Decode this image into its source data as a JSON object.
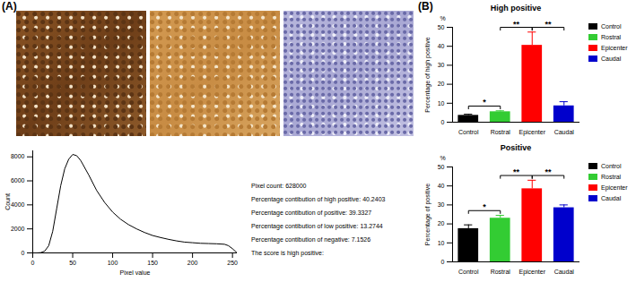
{
  "panel_labels": [
    "(A)",
    "(B)"
  ],
  "chart_data": [
    {
      "type": "line",
      "x": [
        0,
        5,
        10,
        15,
        20,
        25,
        30,
        35,
        40,
        45,
        50,
        55,
        60,
        70,
        80,
        90,
        100,
        110,
        120,
        130,
        140,
        150,
        160,
        170,
        180,
        190,
        200,
        210,
        220,
        230,
        240,
        245,
        250,
        255
      ],
      "values": [
        0,
        0,
        20,
        150,
        600,
        1800,
        3700,
        5600,
        7000,
        7800,
        8200,
        8100,
        7700,
        6500,
        5200,
        4200,
        3400,
        2800,
        2350,
        2000,
        1700,
        1450,
        1280,
        1130,
        1000,
        900,
        850,
        800,
        780,
        760,
        720,
        600,
        350,
        50
      ],
      "color": "#000000",
      "xlabel": "Pixel value",
      "ylabel": "Count",
      "xlim": [
        0,
        256
      ],
      "xticks": [
        0,
        50,
        100,
        150,
        200,
        250
      ],
      "ylim": [
        0,
        8500
      ],
      "yticks": [
        0,
        2000,
        4000,
        6000,
        8000
      ],
      "annotations": [
        "Pixel count: 628000",
        "Percentage contibution of high positive: 40.2403",
        "Percentage contibution of positive: 39.3327",
        "Percentage contibution of low positive: 13.2744",
        "Percentage contibution of negative: 7.1526",
        "The score is high positive:"
      ]
    },
    {
      "type": "bar",
      "title": "High positive",
      "ylabel": "Percentage of high positive",
      "y_unit_label": "%",
      "categories": [
        "Control",
        "Rostral",
        "Epicenter",
        "Caudal"
      ],
      "values": [
        3.6,
        5.5,
        40.5,
        8.6
      ],
      "errors": [
        0.6,
        0.5,
        7,
        2.2
      ],
      "colors": [
        "#000000",
        "#33cc33",
        "#ff0000",
        "#0000cc"
      ],
      "ylim": [
        0,
        50
      ],
      "yticks": [
        0,
        10,
        20,
        30,
        40,
        50
      ],
      "legend": "right",
      "significance": [
        {
          "from": "Control",
          "to": "Rostral",
          "label": "*"
        },
        {
          "from": "Rostral",
          "to": "Epicenter",
          "label": "**"
        },
        {
          "from": "Epicenter",
          "to": "Caudal",
          "label": "**"
        }
      ]
    },
    {
      "type": "bar",
      "title": "Positive",
      "ylabel": "Percentage of positive",
      "y_unit_label": "%",
      "categories": [
        "Control",
        "Rostral",
        "Epicenter",
        "Caudal"
      ],
      "values": [
        17.5,
        23,
        38.5,
        28.5
      ],
      "errors": [
        2,
        1.5,
        4.5,
        1.5
      ],
      "colors": [
        "#000000",
        "#33cc33",
        "#ff0000",
        "#0000cc"
      ],
      "ylim": [
        0,
        50
      ],
      "yticks": [
        0,
        10,
        20,
        30,
        40,
        50
      ],
      "legend": "right",
      "significance": [
        {
          "from": "Control",
          "to": "Rostral",
          "label": "*"
        },
        {
          "from": "Rostral",
          "to": "Epicenter",
          "label": "**"
        },
        {
          "from": "Epicenter",
          "to": "Caudal",
          "label": "**"
        }
      ]
    }
  ]
}
